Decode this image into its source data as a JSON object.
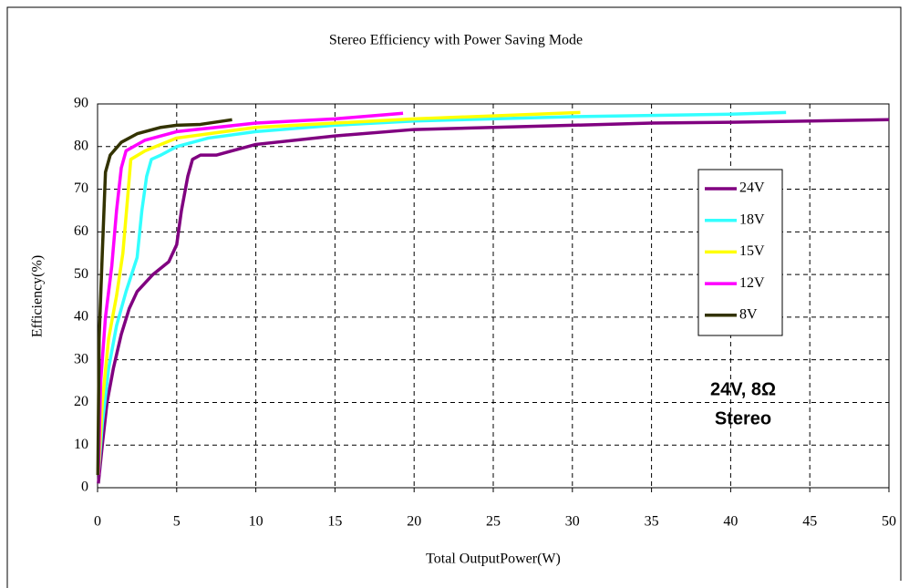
{
  "chart_data": {
    "type": "line",
    "title": "Stereo Efficiency with Power Saving Mode",
    "x_label": "Total OutputPower(W)",
    "y_label": "Efficiency(%)",
    "xlim": [
      0,
      50
    ],
    "xticks": [
      0,
      5,
      10,
      15,
      20,
      25,
      30,
      35,
      40,
      45,
      50
    ],
    "ylim": [
      0,
      90
    ],
    "yticks": [
      0,
      10,
      20,
      30,
      40,
      50,
      60,
      70,
      80,
      90
    ],
    "grid": true,
    "legend": "right",
    "annotations": [
      "24V, 8Ω",
      "Stereo"
    ],
    "series": [
      {
        "name": "24V",
        "color": "#800080",
        "x": [
          0.05,
          0.3,
          0.6,
          1,
          1.5,
          2,
          2.5,
          3.5,
          4.5,
          5,
          5.3,
          5.7,
          6,
          6.5,
          7.5,
          8.5,
          10,
          15,
          20,
          25,
          30,
          35,
          40,
          45,
          50
        ],
        "values": [
          1,
          10,
          20,
          28,
          36,
          42,
          46,
          50,
          53,
          57,
          65,
          73,
          77,
          78,
          78,
          79,
          80.5,
          82.5,
          84,
          84.5,
          85,
          85.5,
          85.7,
          86,
          86.3
        ]
      },
      {
        "name": "18V",
        "color": "#33ffff",
        "x": [
          0.05,
          0.3,
          0.7,
          1.2,
          1.8,
          2.5,
          2.8,
          3.1,
          3.4,
          4,
          5,
          7,
          10,
          15,
          20,
          25,
          30,
          35,
          40,
          43.5
        ],
        "values": [
          3,
          15,
          28,
          38,
          46,
          54,
          65,
          73,
          77,
          78,
          80,
          82,
          83.5,
          85,
          86,
          86.5,
          87,
          87.3,
          87.6,
          88
        ]
      },
      {
        "name": "15V",
        "color": "#ffff00",
        "x": [
          0.05,
          0.3,
          0.7,
          1.2,
          1.6,
          1.9,
          2.1,
          3,
          5,
          10,
          15,
          20,
          25,
          30.5
        ],
        "values": [
          3,
          20,
          35,
          45,
          55,
          68,
          77,
          79,
          82,
          84.5,
          85.5,
          86.5,
          87.2,
          88
        ]
      },
      {
        "name": "12V",
        "color": "#ff00ff",
        "x": [
          0.05,
          0.2,
          0.5,
          0.9,
          1.2,
          1.5,
          1.8,
          3,
          5,
          10,
          15,
          19.3
        ],
        "values": [
          3,
          25,
          40,
          52,
          65,
          75,
          79,
          81.5,
          83.5,
          85.5,
          86.5,
          87.8
        ]
      },
      {
        "name": "8V",
        "color": "#333300",
        "x": [
          0.02,
          0.1,
          0.3,
          0.5,
          0.8,
          1.5,
          2.5,
          4,
          5,
          6.5,
          8.5
        ],
        "values": [
          3,
          35,
          55,
          74,
          78,
          81,
          83,
          84.5,
          85,
          85.2,
          86.3
        ]
      }
    ]
  }
}
